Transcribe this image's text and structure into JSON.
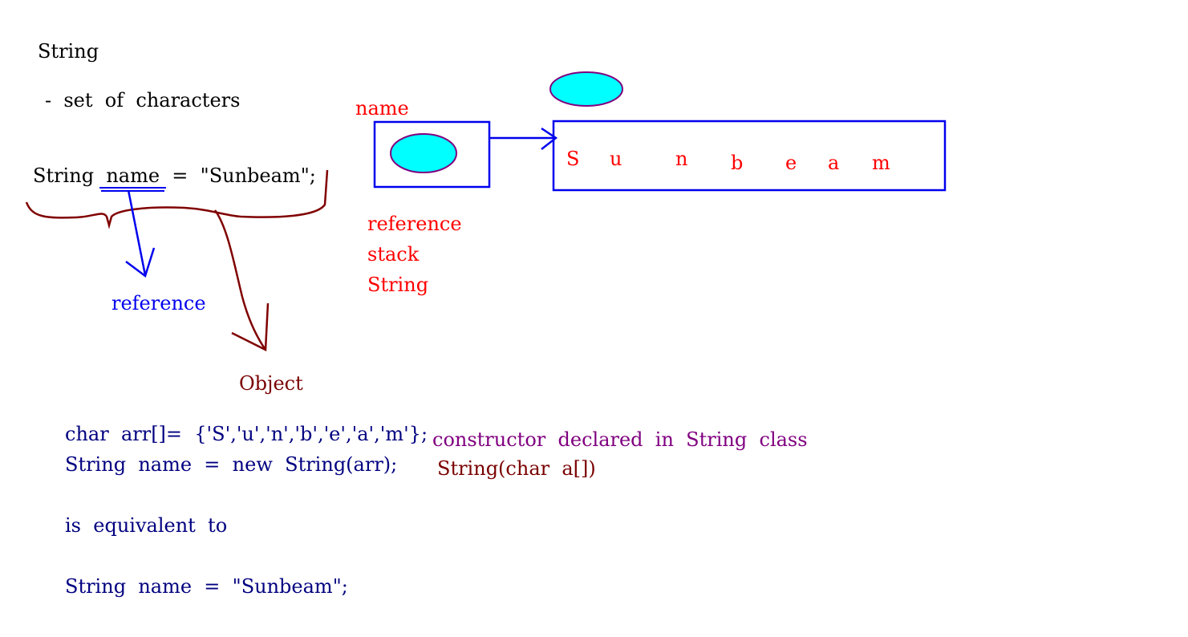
{
  "notes": {
    "heading": "String",
    "definition": "-  set  of  characters",
    "declaration": "String  name  =  \"Sunbeam\";",
    "label_reference": "reference",
    "label_object": "Object"
  },
  "diagram": {
    "variable_name": "name",
    "reference_notes": [
      "reference",
      "stack",
      "String"
    ],
    "letters": [
      "S",
      "u",
      "n",
      "b",
      "e",
      "a",
      "m"
    ],
    "colors": {
      "box": "#0000ee",
      "bubble_fill": "#00ffff",
      "bubble_stroke": "#800080",
      "annotation": "#ff0000",
      "brace": "#800000"
    }
  },
  "code": {
    "line1": "char  arr[]=  {'S','u','n','b','e','a','m'};",
    "line2": "String  name  =  new  String(arr);",
    "equivalent": "is  equivalent  to",
    "line3": "String  name  =  \"Sunbeam\";"
  },
  "constructor_note": {
    "title": "constructor  declared  in  String  class",
    "signature": "String(char  a[])"
  }
}
